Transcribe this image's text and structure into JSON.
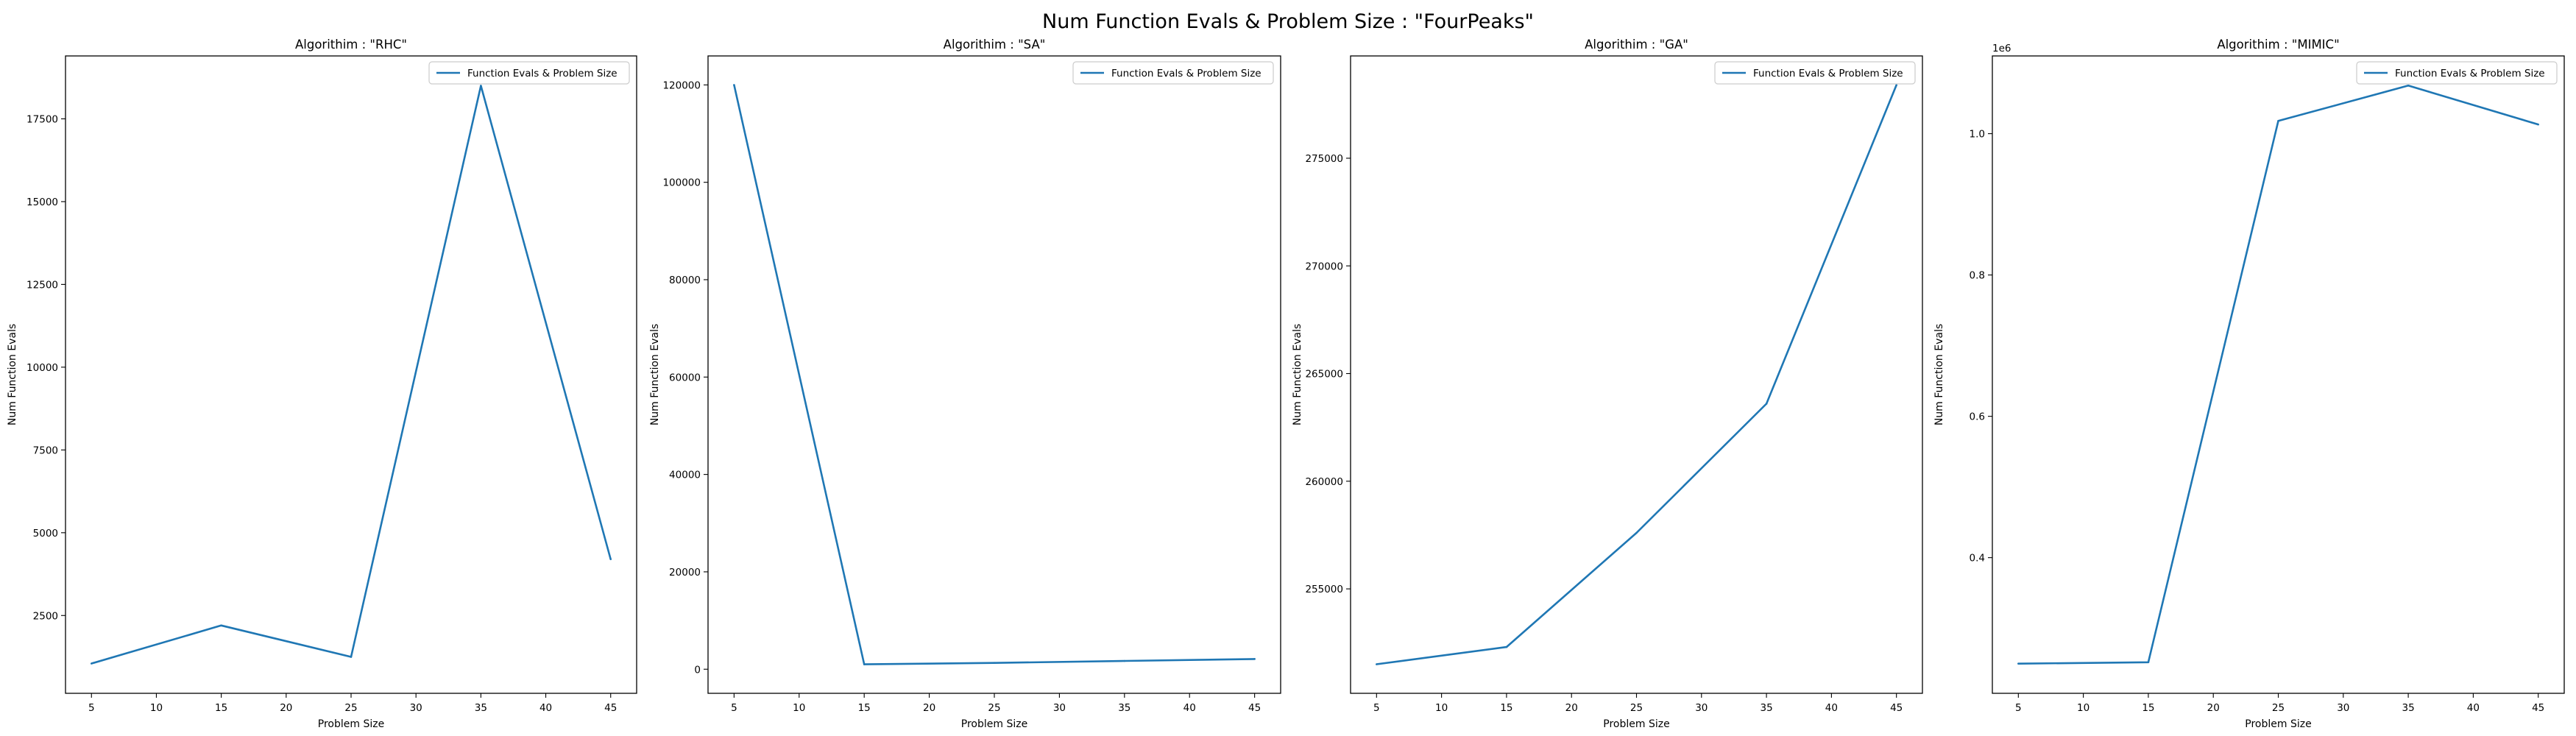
{
  "figure": {
    "suptitle": "Num Function Evals & Problem Size : \"FourPeaks\""
  },
  "chart_data": [
    {
      "type": "line",
      "title": "Algorithim : \"RHC\"",
      "xlabel": "Problem Size",
      "ylabel": "Num Function Evals",
      "x": [
        5,
        15,
        25,
        35,
        45
      ],
      "series": [
        {
          "name": "Function Evals & Problem Size",
          "values": [
            1050,
            2200,
            1250,
            18500,
            4200
          ],
          "color": "#1f77b4"
        }
      ],
      "xlim": [
        3,
        47
      ],
      "ylim": [
        150,
        19400
      ],
      "xticks": [
        5,
        10,
        15,
        20,
        25,
        30,
        35,
        40,
        45
      ],
      "yticks": [
        2500,
        5000,
        7500,
        10000,
        12500,
        15000,
        17500
      ],
      "ytick_labels": [
        "2500",
        "5000",
        "7500",
        "10000",
        "12500",
        "15000",
        "17500"
      ],
      "offset_text": "",
      "legend": "upper right",
      "grid": false
    },
    {
      "type": "line",
      "title": "Algorithim : \"SA\"",
      "xlabel": "Problem Size",
      "ylabel": "Num Function Evals",
      "x": [
        5,
        15,
        25,
        35,
        45
      ],
      "series": [
        {
          "name": "Function Evals & Problem Size",
          "values": [
            120000,
            1000,
            1300,
            1700,
            2100
          ],
          "color": "#1f77b4"
        }
      ],
      "xlim": [
        3,
        47
      ],
      "ylim": [
        -4950,
        125950
      ],
      "xticks": [
        5,
        10,
        15,
        20,
        25,
        30,
        35,
        40,
        45
      ],
      "yticks": [
        0,
        20000,
        40000,
        60000,
        80000,
        100000,
        120000
      ],
      "ytick_labels": [
        "0",
        "20000",
        "40000",
        "60000",
        "80000",
        "100000",
        "120000"
      ],
      "offset_text": "",
      "legend": "upper right",
      "grid": false
    },
    {
      "type": "line",
      "title": "Algorithim : \"GA\"",
      "xlabel": "Problem Size",
      "ylabel": "Num Function Evals",
      "x": [
        5,
        15,
        25,
        35,
        45
      ],
      "series": [
        {
          "name": "Function Evals & Problem Size",
          "values": [
            251500,
            252300,
            257600,
            263600,
            278400
          ],
          "color": "#1f77b4"
        }
      ],
      "xlim": [
        3,
        47
      ],
      "ylim": [
        250150,
        279750
      ],
      "xticks": [
        5,
        10,
        15,
        20,
        25,
        30,
        35,
        40,
        45
      ],
      "yticks": [
        255000,
        260000,
        265000,
        270000,
        275000
      ],
      "ytick_labels": [
        "255000",
        "260000",
        "265000",
        "270000",
        "275000"
      ],
      "offset_text": "",
      "legend": "upper right",
      "grid": false
    },
    {
      "type": "line",
      "title": "Algorithim : \"MIMIC\"",
      "xlabel": "Problem Size",
      "ylabel": "Num Function Evals",
      "x": [
        5,
        15,
        25,
        35,
        45
      ],
      "series": [
        {
          "name": "Function Evals & Problem Size",
          "values": [
            250000,
            252000,
            1018000,
            1068000,
            1013000
          ],
          "color": "#1f77b4"
        }
      ],
      "xlim": [
        3,
        47
      ],
      "ylim": [
        208000,
        1110000
      ],
      "xticks": [
        5,
        10,
        15,
        20,
        25,
        30,
        35,
        40,
        45
      ],
      "yticks": [
        400000,
        600000,
        800000,
        1000000
      ],
      "ytick_labels": [
        "0.4",
        "0.6",
        "0.8",
        "1.0"
      ],
      "offset_text": "1e6",
      "legend": "upper right",
      "grid": false
    }
  ]
}
